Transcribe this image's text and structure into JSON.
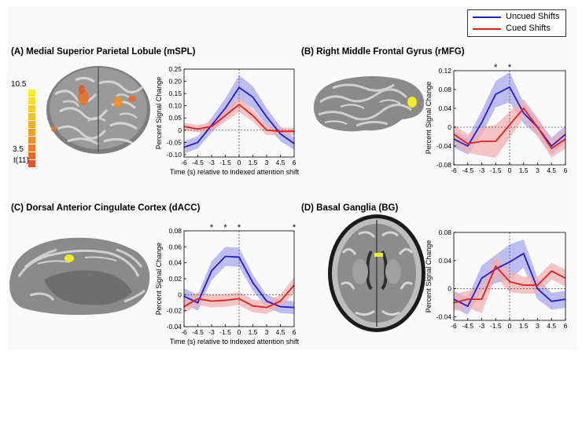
{
  "legend": {
    "uncued": "Uncued Shifts",
    "cued": "Cued Shifts"
  },
  "colors": {
    "uncued_line": "#1f1fcc",
    "uncued_band": "#a8a8ee",
    "cued_line": "#dd2020",
    "cued_band": "#f2b0b0"
  },
  "colorbar": {
    "max_label": "10.5",
    "min_label": "3.5",
    "stat_label": "t(11)",
    "colors": [
      "#f6ec2a",
      "#f6de2a",
      "#f5cf2a",
      "#f4c02a",
      "#f3b02a",
      "#f1a02a",
      "#ef8f2a",
      "#ec7c2a",
      "#e9692a",
      "#e5552a"
    ]
  },
  "panels": {
    "A": {
      "title": "(A) Medial Superior Parietal Lobule (mSPL)"
    },
    "B": {
      "title": "(B) Right Middle Frontal Gyrus (rMFG)"
    },
    "C": {
      "title": "(C) Dorsal Anterior Cingulate Cortex (dACC)"
    },
    "D": {
      "title": "(D) Basal Ganglia (BG)"
    }
  },
  "chart_data": [
    {
      "id": "A",
      "type": "line",
      "title": "(A) Medial Superior Parietal Lobule (mSPL)",
      "xlabel": "Time (s) relative to indexed attention shift",
      "ylabel": "Percent Signal Change",
      "x": [
        -6,
        -4.5,
        -3,
        -1.5,
        0,
        1.5,
        3,
        4.5,
        6
      ],
      "xticks": [
        "-6",
        "-4.5",
        "-3",
        "-1.5",
        "0",
        "1.5",
        "3",
        "4.5",
        "6"
      ],
      "yticks": [
        "-0.10",
        "-0.05",
        "0",
        "0.05",
        "0.10",
        "0.15",
        "0.20",
        "0.25"
      ],
      "xlim": [
        -6,
        6
      ],
      "ylim": [
        -0.11,
        0.25
      ],
      "series": [
        {
          "name": "Uncued Shifts",
          "values": [
            -0.07,
            -0.05,
            0.02,
            0.09,
            0.175,
            0.135,
            0.055,
            -0.015,
            -0.055
          ],
          "band": [
            0.025,
            0.025,
            0.03,
            0.04,
            0.05,
            0.045,
            0.035,
            0.03,
            0.025
          ]
        },
        {
          "name": "Cued Shifts",
          "values": [
            0.015,
            0.005,
            0.015,
            0.06,
            0.105,
            0.06,
            0.0,
            -0.005,
            -0.005
          ],
          "band": [
            0.015,
            0.015,
            0.02,
            0.025,
            0.03,
            0.025,
            0.02,
            0.015,
            0.015
          ]
        }
      ],
      "significant_x": [],
      "vline_x": 0,
      "show_xlabel": true
    },
    {
      "id": "B",
      "type": "line",
      "title": "(B) Right Middle Frontal Gyrus (rMFG)",
      "xlabel": "",
      "ylabel": "Percent Signal Change",
      "x": [
        -6,
        -4.5,
        -3,
        -1.5,
        0,
        1.5,
        3,
        4.5,
        6
      ],
      "xticks": [
        "-6",
        "-4.5",
        "-3",
        "-1.5",
        "0",
        "1.5",
        "3",
        "4.5",
        "6"
      ],
      "yticks": [
        "-0.08",
        "-0.04",
        "0",
        "0.04",
        "0.08",
        "0.12"
      ],
      "xlim": [
        -6,
        6
      ],
      "ylim": [
        -0.08,
        0.12
      ],
      "series": [
        {
          "name": "Uncued Shifts",
          "values": [
            -0.025,
            -0.04,
            0.01,
            0.07,
            0.085,
            0.03,
            0.0,
            -0.04,
            -0.015
          ],
          "band": [
            0.018,
            0.018,
            0.025,
            0.028,
            0.032,
            0.022,
            0.018,
            0.018,
            0.018
          ]
        },
        {
          "name": "Cued Shifts",
          "values": [
            -0.015,
            -0.035,
            -0.03,
            -0.03,
            0.005,
            0.04,
            0.0,
            -0.045,
            -0.025
          ],
          "band": [
            0.02,
            0.02,
            0.03,
            0.035,
            0.028,
            0.02,
            0.02,
            0.02,
            0.02
          ]
        }
      ],
      "significant_x": [
        -1.5,
        0
      ],
      "vline_x": 0,
      "show_xlabel": false
    },
    {
      "id": "C",
      "type": "line",
      "title": "(C) Dorsal Anterior Cingulate Cortex (dACC)",
      "xlabel": "Time (s) relative to indexed attention shift",
      "ylabel": "Percent Signal Change",
      "x": [
        -6,
        -4.5,
        -3,
        -1.5,
        0,
        1.5,
        3,
        4.5,
        6
      ],
      "xticks": [
        "-6",
        "-4.5",
        "-3",
        "-1.5",
        "0",
        "1.5",
        "3",
        "4.5",
        "6"
      ],
      "yticks": [
        "-0.04",
        "-0.02",
        "0",
        "0.02",
        "0.04",
        "0.06",
        "0.08"
      ],
      "xlim": [
        -6,
        6
      ],
      "ylim": [
        -0.04,
        0.08
      ],
      "series": [
        {
          "name": "Uncued Shifts",
          "values": [
            -0.002,
            -0.01,
            0.03,
            0.048,
            0.047,
            0.015,
            -0.008,
            -0.015,
            -0.016
          ],
          "band": [
            0.01,
            0.01,
            0.012,
            0.012,
            0.012,
            0.01,
            0.008,
            0.008,
            0.008
          ]
        },
        {
          "name": "Cued Shifts",
          "values": [
            -0.015,
            -0.005,
            -0.008,
            -0.007,
            -0.005,
            -0.014,
            -0.016,
            -0.008,
            0.012
          ],
          "band": [
            0.008,
            0.008,
            0.008,
            0.008,
            0.008,
            0.008,
            0.008,
            0.008,
            0.01
          ]
        }
      ],
      "significant_x": [
        -3,
        -1.5,
        0,
        6
      ],
      "vline_x": 0,
      "show_xlabel": true
    },
    {
      "id": "D",
      "type": "line",
      "title": "(D) Basal Ganglia (BG)",
      "xlabel": "",
      "ylabel": "Percent Signal Change",
      "x": [
        -6,
        -4.5,
        -3,
        -1.5,
        0,
        1.5,
        3,
        4.5,
        6
      ],
      "xticks": [
        "-6",
        "-4.5",
        "-3",
        "-1.5",
        "0",
        "1.5",
        "3",
        "4.5",
        "6"
      ],
      "yticks": [
        "-0.04",
        "0",
        "0.04",
        "0.08"
      ],
      "xlim": [
        -6,
        6
      ],
      "ylim": [
        -0.045,
        0.08
      ],
      "series": [
        {
          "name": "Uncued Shifts",
          "values": [
            -0.015,
            -0.025,
            0.015,
            0.028,
            0.038,
            0.05,
            0.0,
            -0.018,
            -0.015
          ],
          "band": [
            0.012,
            0.012,
            0.018,
            0.02,
            0.025,
            0.02,
            0.015,
            0.012,
            0.012
          ]
        },
        {
          "name": "Cued Shifts",
          "values": [
            -0.02,
            -0.015,
            -0.015,
            0.032,
            0.01,
            0.005,
            0.005,
            0.025,
            0.015
          ],
          "band": [
            0.012,
            0.012,
            0.02,
            0.015,
            0.015,
            0.012,
            0.012,
            0.012,
            0.012
          ]
        }
      ],
      "significant_x": [],
      "vline_x": 0,
      "show_xlabel": false
    }
  ]
}
